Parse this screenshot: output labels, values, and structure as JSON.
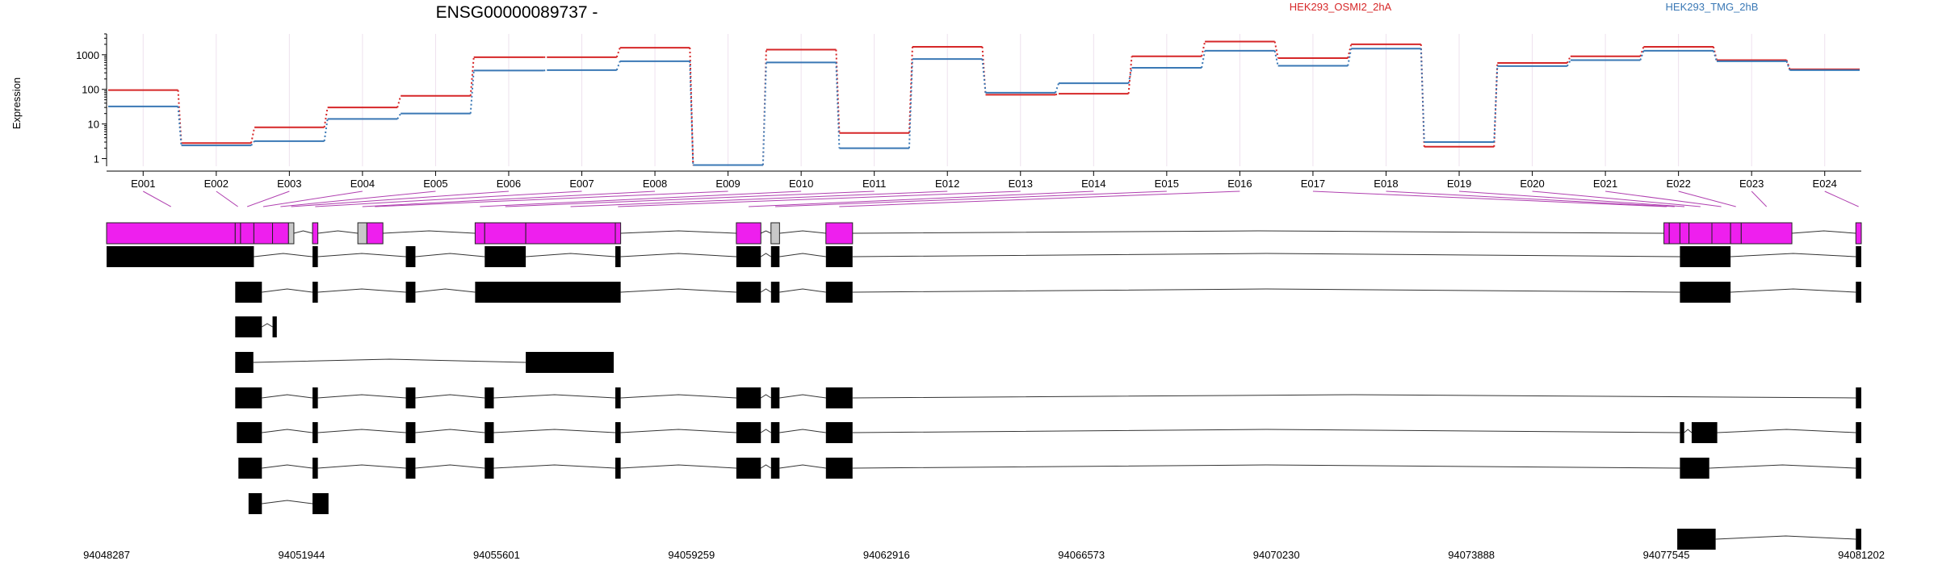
{
  "title": "ENSG00000089737 -",
  "colors": {
    "series_a": "#d62728",
    "series_b": "#3a78b5",
    "exon_highlight": "#ee1fee",
    "exon_dim": "#c8c8c8",
    "link_line": "#b040b0"
  },
  "chart_data": {
    "type": "line",
    "title": "ENSG00000089737 -",
    "ylabel": "Expression",
    "yscale": "log",
    "ylim": [
      0.6,
      4000
    ],
    "yticks": [
      1,
      10,
      100,
      1000
    ],
    "ytick_labels": [
      "1",
      "10",
      "100",
      "1000"
    ],
    "categories": [
      "E001",
      "E002",
      "E003",
      "E004",
      "E005",
      "E006",
      "E007",
      "E008",
      "E009",
      "E010",
      "E011",
      "E012",
      "E013",
      "E014",
      "E015",
      "E016",
      "E017",
      "E018",
      "E019",
      "E020",
      "E021",
      "E022",
      "E023",
      "E024"
    ],
    "series": [
      {
        "name": "HEK293_OSMI2_2hA",
        "color": "#d62728",
        "values": [
          95,
          2.8,
          8,
          30,
          65,
          850,
          850,
          1600,
          0.65,
          1400,
          5.5,
          1700,
          70,
          75,
          900,
          2400,
          800,
          2000,
          2.2,
          580,
          900,
          1700,
          700,
          380
        ]
      },
      {
        "name": "HEK293_TMG_2hB",
        "color": "#3a78b5",
        "values": [
          32,
          2.4,
          3.2,
          14,
          20,
          350,
          360,
          650,
          0.65,
          600,
          2,
          750,
          80,
          150,
          420,
          1300,
          480,
          1500,
          3,
          470,
          700,
          1300,
          650,
          360
        ]
      }
    ]
  },
  "genome": {
    "coord_labels": [
      "94048287",
      "94051944",
      "94055601",
      "94059259",
      "94062916",
      "94066573",
      "94070230",
      "94073888",
      "94077545",
      "94081202"
    ]
  }
}
